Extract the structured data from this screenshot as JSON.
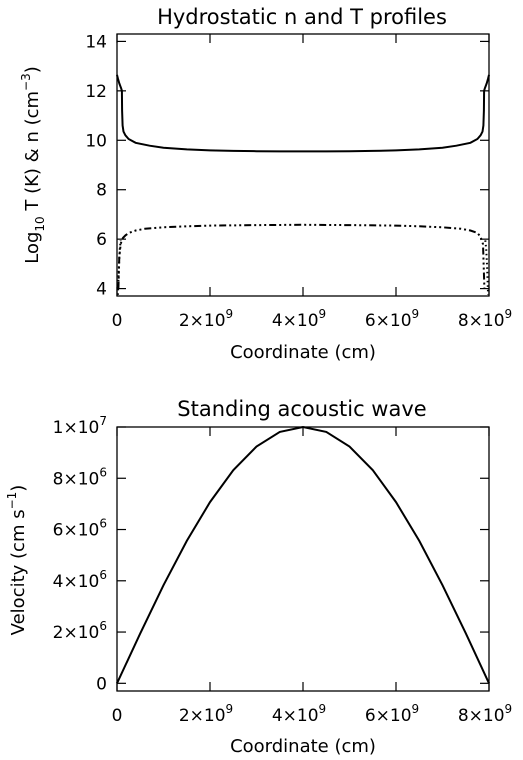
{
  "chart_data": [
    {
      "type": "line",
      "title": "Hydrostatic n and T profiles",
      "xlabel": "Coordinate (cm)",
      "ylabel": {
        "base": "Log",
        "base_sub": "10",
        "rest": " T (K)  & n (cm",
        "sup": "−3",
        "close": ")"
      },
      "xlim": [
        0,
        8000000000.0
      ],
      "ylim": [
        3.7,
        14.3
      ],
      "xticks": [
        {
          "value": 0,
          "mant": "0",
          "exp": ""
        },
        {
          "value": 2000000000.0,
          "mant": "2×10",
          "exp": "9"
        },
        {
          "value": 4000000000.0,
          "mant": "4×10",
          "exp": "9"
        },
        {
          "value": 6000000000.0,
          "mant": "6×10",
          "exp": "9"
        },
        {
          "value": 8000000000.0,
          "mant": "8×10",
          "exp": "9"
        }
      ],
      "yticks": [
        {
          "value": 4,
          "mant": "4",
          "exp": ""
        },
        {
          "value": 6,
          "mant": "6",
          "exp": ""
        },
        {
          "value": 8,
          "mant": "8",
          "exp": ""
        },
        {
          "value": 10,
          "mant": "10",
          "exp": ""
        },
        {
          "value": 12,
          "mant": "12",
          "exp": ""
        },
        {
          "value": 14,
          "mant": "14",
          "exp": ""
        }
      ],
      "series": [
        {
          "style": "solid",
          "x": [
            0,
            20000000.0,
            50000000.0,
            90000000.0,
            105000000.0,
            110000000.0,
            120000000.0,
            140000000.0,
            180000000.0,
            250000000.0,
            400000000.0,
            700000000.0,
            1000000000.0,
            1500000000.0,
            2000000000.0,
            2500000000.0,
            3000000000.0,
            3500000000.0,
            4000000000.0,
            4500000000.0,
            5000000000.0,
            5500000000.0,
            6000000000.0,
            6500000000.0,
            7000000000.0,
            7300000000.0,
            7600000000.0,
            7750000000.0,
            7820000000.0,
            7860000000.0,
            7880000000.0,
            7890000000.0,
            7895000000.0,
            7910000000.0,
            7950000000.0,
            7980000000.0,
            8000000000.0
          ],
          "y": [
            12.65,
            12.5,
            12.3,
            12.1,
            12.0,
            11.2,
            10.6,
            10.35,
            10.2,
            10.05,
            9.9,
            9.78,
            9.7,
            9.63,
            9.59,
            9.57,
            9.56,
            9.55,
            9.55,
            9.55,
            9.56,
            9.57,
            9.59,
            9.63,
            9.7,
            9.78,
            9.9,
            10.05,
            10.2,
            10.35,
            10.6,
            11.2,
            12.0,
            12.1,
            12.3,
            12.5,
            12.65
          ]
        },
        {
          "style": "dash-dot",
          "x": [
            30000000.0,
            50000000.0,
            80000000.0,
            100000000.0,
            130000000.0,
            180000000.0,
            250000000.0,
            400000000.0,
            600000000.0,
            1000000000.0,
            1500000000.0,
            2000000000.0,
            3000000000.0,
            4000000000.0,
            5000000000.0,
            6000000000.0,
            6500000000.0,
            7000000000.0,
            7400000000.0,
            7600000000.0,
            7750000000.0,
            7820000000.0,
            7870000000.0,
            7900000000.0
          ],
          "y": [
            4.0,
            5.3,
            5.8,
            5.95,
            6.05,
            6.15,
            6.25,
            6.35,
            6.42,
            6.48,
            6.52,
            6.55,
            6.57,
            6.58,
            6.57,
            6.55,
            6.52,
            6.48,
            6.42,
            6.35,
            6.25,
            6.1,
            5.8,
            4.0
          ]
        },
        {
          "style": "dotted",
          "x": [
            20000000.0,
            30000000.0,
            40000000.0,
            60000000.0,
            80000000.0
          ],
          "y": [
            3.75,
            4.3,
            4.9,
            5.6,
            5.95
          ]
        },
        {
          "style": "dotted",
          "x": [
            7920000000.0,
            7940000000.0,
            7960000000.0,
            7970000000.0,
            7980000000.0
          ],
          "y": [
            5.95,
            5.6,
            4.9,
            4.3,
            3.75
          ]
        }
      ]
    },
    {
      "type": "line",
      "title": "Standing acoustic wave",
      "xlabel": "Coordinate (cm)",
      "ylabel": {
        "base": "Velocity (cm s",
        "base_sub": "",
        "rest": "",
        "sup": "−1",
        "close": ")"
      },
      "xlim": [
        0,
        8000000000.0
      ],
      "ylim": [
        -300000.0,
        10000000.0
      ],
      "xticks": [
        {
          "value": 0,
          "mant": "0",
          "exp": ""
        },
        {
          "value": 2000000000.0,
          "mant": "2×10",
          "exp": "9"
        },
        {
          "value": 4000000000.0,
          "mant": "4×10",
          "exp": "9"
        },
        {
          "value": 6000000000.0,
          "mant": "6×10",
          "exp": "9"
        },
        {
          "value": 8000000000.0,
          "mant": "8×10",
          "exp": "9"
        }
      ],
      "yticks": [
        {
          "value": 0,
          "mant": "0",
          "exp": ""
        },
        {
          "value": 2000000.0,
          "mant": "2×10",
          "exp": "6"
        },
        {
          "value": 4000000.0,
          "mant": "4×10",
          "exp": "6"
        },
        {
          "value": 6000000.0,
          "mant": "6×10",
          "exp": "6"
        },
        {
          "value": 8000000.0,
          "mant": "8×10",
          "exp": "6"
        },
        {
          "value": 10000000.0,
          "mant": "1×10",
          "exp": "7"
        }
      ],
      "series": [
        {
          "style": "solid",
          "x": [
            0,
            500000000.0,
            1000000000.0,
            1500000000.0,
            2000000000.0,
            2500000000.0,
            3000000000.0,
            3500000000.0,
            4000000000.0,
            4500000000.0,
            5000000000.0,
            5500000000.0,
            6000000000.0,
            6500000000.0,
            7000000000.0,
            7500000000.0,
            8000000000.0
          ],
          "y": [
            0,
            1951000.0,
            3827000.0,
            5556000.0,
            7071000.0,
            8315000.0,
            9239000.0,
            9808000.0,
            10000000.0,
            9808000.0,
            9239000.0,
            8315000.0,
            7071000.0,
            5556000.0,
            3827000.0,
            1951000.0,
            0
          ]
        }
      ]
    }
  ]
}
